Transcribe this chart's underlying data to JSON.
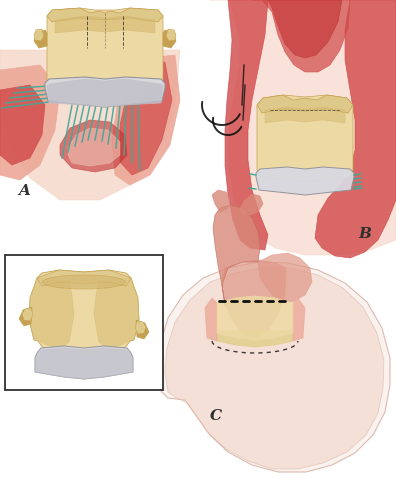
{
  "title": "",
  "label_A": "A",
  "label_B": "B",
  "label_C": "C",
  "bg_color": "#ffffff",
  "tan_body": "#DEC88A",
  "tan_light": "#EDD9A3",
  "tan_dark": "#C4A050",
  "tan_mid": "#D4B870",
  "gray_ring": "#C0C0C8",
  "gray_dark": "#909098",
  "gray_light": "#D8D8E0",
  "red_dark": "#C03030",
  "red_mid": "#D04848",
  "pink_med": "#E07878",
  "pink_light": "#ECA898",
  "pink_vlight": "#F5D0C0",
  "teal": "#40A898",
  "dark": "#303030",
  "black": "#101010",
  "heart_outline": "#D0A090",
  "heart_fill": "#F0D0C0",
  "aorta_color": "#E09080",
  "yellow_tan": "#D8C870"
}
